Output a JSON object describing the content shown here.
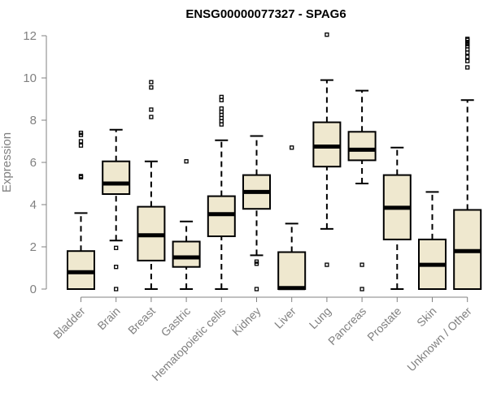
{
  "chart_data": {
    "type": "boxplot",
    "title": "ENSG00000077327 - SPAG6",
    "xlabel": "",
    "ylabel": "Expression",
    "ylim": [
      0,
      12
    ],
    "yticks": [
      0,
      2,
      4,
      6,
      8,
      10,
      12
    ],
    "box_fill": "#efe8cf",
    "categories": [
      "Bladder",
      "Brain",
      "Breast",
      "Gastric",
      "Hematopoietic cells",
      "Kidney",
      "Liver",
      "Lung",
      "Pancreas",
      "Prostate",
      "Skin",
      "Unknown / Other"
    ],
    "boxes": [
      {
        "name": "Bladder",
        "whisker_low": 0.0,
        "q1": 0.0,
        "median": 0.8,
        "q3": 1.8,
        "whisker_high": 3.6,
        "outliers": [
          5.3,
          5.35,
          6.8,
          7.0,
          7.3,
          7.4
        ]
      },
      {
        "name": "Brain",
        "whisker_low": 2.3,
        "q1": 4.5,
        "median": 5.0,
        "q3": 6.05,
        "whisker_high": 7.55,
        "outliers": [
          0.0,
          1.05,
          1.95
        ]
      },
      {
        "name": "Breast",
        "whisker_low": 0.0,
        "q1": 1.35,
        "median": 2.55,
        "q3": 3.9,
        "whisker_high": 6.05,
        "outliers": [
          8.15,
          8.5,
          9.55,
          9.8
        ]
      },
      {
        "name": "Gastric",
        "whisker_low": 0.0,
        "q1": 1.05,
        "median": 1.5,
        "q3": 2.25,
        "whisker_high": 3.2,
        "outliers": [
          6.05
        ]
      },
      {
        "name": "Hematopoietic cells",
        "whisker_low": 0.0,
        "q1": 2.5,
        "median": 3.55,
        "q3": 4.4,
        "whisker_high": 7.05,
        "outliers": [
          7.8,
          7.95,
          8.1,
          8.25,
          8.4,
          8.55,
          8.95,
          9.1
        ]
      },
      {
        "name": "Kidney",
        "whisker_low": 1.6,
        "q1": 3.8,
        "median": 4.6,
        "q3": 5.4,
        "whisker_high": 7.25,
        "outliers": [
          0.0,
          1.2,
          1.3
        ]
      },
      {
        "name": "Liver",
        "whisker_low": 0.0,
        "q1": 0.0,
        "median": 0.05,
        "q3": 1.75,
        "whisker_high": 3.1,
        "outliers": [
          6.7
        ]
      },
      {
        "name": "Lung",
        "whisker_low": 2.85,
        "q1": 5.8,
        "median": 6.75,
        "q3": 7.9,
        "whisker_high": 9.9,
        "outliers": [
          1.15,
          12.05
        ]
      },
      {
        "name": "Pancreas",
        "whisker_low": 5.0,
        "q1": 6.1,
        "median": 6.6,
        "q3": 7.45,
        "whisker_high": 9.4,
        "outliers": [
          0.0,
          1.15
        ]
      },
      {
        "name": "Prostate",
        "whisker_low": 0.0,
        "q1": 2.35,
        "median": 3.85,
        "q3": 5.4,
        "whisker_high": 6.7,
        "outliers": []
      },
      {
        "name": "Skin",
        "whisker_low": 0.0,
        "q1": 0.0,
        "median": 1.15,
        "q3": 2.35,
        "whisker_high": 4.6,
        "outliers": []
      },
      {
        "name": "Unknown / Other",
        "whisker_low": 0.0,
        "q1": 0.0,
        "median": 1.8,
        "q3": 3.75,
        "whisker_high": 8.95,
        "outliers": [
          10.5,
          10.8,
          11.0,
          11.2,
          11.35,
          11.5,
          11.6,
          11.7,
          11.8,
          11.85
        ]
      }
    ]
  }
}
